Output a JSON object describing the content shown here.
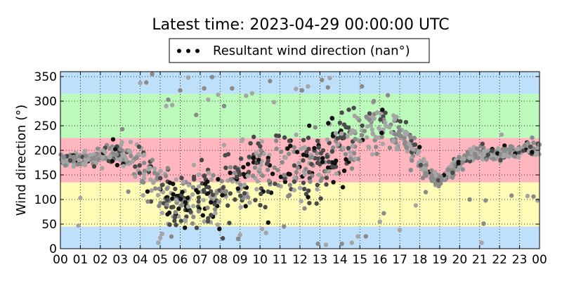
{
  "chart_data": {
    "type": "scatter",
    "title": "Latest time: 2023-04-29 00:00:00 UTC",
    "xlabel": "",
    "ylabel": "Wind direction (°)",
    "xlim": [
      0,
      24
    ],
    "ylim": [
      0,
      360
    ],
    "x_tick_labels": [
      "00",
      "01",
      "02",
      "03",
      "04",
      "05",
      "06",
      "07",
      "08",
      "09",
      "10",
      "11",
      "12",
      "13",
      "14",
      "15",
      "16",
      "17",
      "18",
      "19",
      "20",
      "21",
      "22",
      "23",
      "00"
    ],
    "y_ticks": [
      0,
      50,
      100,
      150,
      200,
      250,
      300,
      350
    ],
    "grid": true,
    "legend": {
      "placement": "top-center",
      "entries": [
        "Resultant wind direction (nan°)"
      ]
    },
    "bands": [
      {
        "from": 0,
        "to": 45,
        "color": "#bfe0fb"
      },
      {
        "from": 45,
        "to": 135,
        "color": "#fffcb8"
      },
      {
        "from": 135,
        "to": 225,
        "color": "#ffb6be"
      },
      {
        "from": 225,
        "to": 315,
        "color": "#bdfbbd"
      },
      {
        "from": 315,
        "to": 360,
        "color": "#bfe0fb"
      }
    ],
    "series": [
      {
        "name": "Resultant wind direction (nan°)",
        "colors": [
          "#8a8a8a",
          "#4a4a4a",
          "#111111",
          "#a5a5a5"
        ],
        "profile": [
          {
            "x": 0.0,
            "y": 180,
            "s": 12
          },
          {
            "x": 0.5,
            "y": 180,
            "s": 12
          },
          {
            "x": 1.0,
            "y": 182,
            "s": 14
          },
          {
            "x": 1.5,
            "y": 183,
            "s": 14
          },
          {
            "x": 2.0,
            "y": 188,
            "s": 15
          },
          {
            "x": 2.5,
            "y": 192,
            "s": 18
          },
          {
            "x": 3.0,
            "y": 190,
            "s": 22
          },
          {
            "x": 3.5,
            "y": 185,
            "s": 30
          },
          {
            "x": 4.0,
            "y": 170,
            "s": 40
          },
          {
            "x": 4.5,
            "y": 150,
            "s": 55
          },
          {
            "x": 5.0,
            "y": 120,
            "s": 60
          },
          {
            "x": 5.5,
            "y": 105,
            "s": 55
          },
          {
            "x": 6.0,
            "y": 100,
            "s": 50
          },
          {
            "x": 6.5,
            "y": 100,
            "s": 50
          },
          {
            "x": 7.0,
            "y": 102,
            "s": 55
          },
          {
            "x": 7.5,
            "y": 108,
            "s": 60
          },
          {
            "x": 8.0,
            "y": 115,
            "s": 65
          },
          {
            "x": 8.5,
            "y": 125,
            "s": 70
          },
          {
            "x": 9.0,
            "y": 135,
            "s": 70
          },
          {
            "x": 9.5,
            "y": 145,
            "s": 70
          },
          {
            "x": 10.0,
            "y": 150,
            "s": 70
          },
          {
            "x": 10.5,
            "y": 155,
            "s": 70
          },
          {
            "x": 11.0,
            "y": 160,
            "s": 70
          },
          {
            "x": 11.5,
            "y": 165,
            "s": 70
          },
          {
            "x": 12.0,
            "y": 170,
            "s": 70
          },
          {
            "x": 12.5,
            "y": 175,
            "s": 70
          },
          {
            "x": 13.0,
            "y": 180,
            "s": 70
          },
          {
            "x": 13.5,
            "y": 190,
            "s": 65
          },
          {
            "x": 14.0,
            "y": 205,
            "s": 60
          },
          {
            "x": 14.5,
            "y": 220,
            "s": 55
          },
          {
            "x": 15.0,
            "y": 235,
            "s": 50
          },
          {
            "x": 15.5,
            "y": 245,
            "s": 45
          },
          {
            "x": 16.0,
            "y": 250,
            "s": 45
          },
          {
            "x": 16.5,
            "y": 245,
            "s": 40
          },
          {
            "x": 17.0,
            "y": 235,
            "s": 35
          },
          {
            "x": 17.5,
            "y": 215,
            "s": 30
          },
          {
            "x": 18.0,
            "y": 185,
            "s": 25
          },
          {
            "x": 18.5,
            "y": 150,
            "s": 15
          },
          {
            "x": 19.0,
            "y": 140,
            "s": 12
          },
          {
            "x": 19.5,
            "y": 155,
            "s": 12
          },
          {
            "x": 20.0,
            "y": 175,
            "s": 15
          },
          {
            "x": 20.5,
            "y": 190,
            "s": 15
          },
          {
            "x": 21.0,
            "y": 198,
            "s": 14
          },
          {
            "x": 21.5,
            "y": 195,
            "s": 14
          },
          {
            "x": 22.0,
            "y": 192,
            "s": 12
          },
          {
            "x": 22.5,
            "y": 195,
            "s": 12
          },
          {
            "x": 23.0,
            "y": 200,
            "s": 14
          },
          {
            "x": 23.5,
            "y": 205,
            "s": 15
          },
          {
            "x": 24.0,
            "y": 200,
            "s": 15
          }
        ],
        "outliers": [
          {
            "x": 0.9,
            "y": 47
          },
          {
            "x": 1.0,
            "y": 103
          },
          {
            "x": 3.1,
            "y": 243
          },
          {
            "x": 3.4,
            "y": 116
          },
          {
            "x": 4.0,
            "y": 337
          },
          {
            "x": 4.3,
            "y": 338
          },
          {
            "x": 4.6,
            "y": 355
          },
          {
            "x": 4.9,
            "y": 12
          },
          {
            "x": 5.0,
            "y": 22
          },
          {
            "x": 5.1,
            "y": 30
          },
          {
            "x": 5.3,
            "y": 290
          },
          {
            "x": 5.4,
            "y": 303
          },
          {
            "x": 5.6,
            "y": 292
          },
          {
            "x": 6.0,
            "y": 322
          },
          {
            "x": 6.4,
            "y": 348
          },
          {
            "x": 6.8,
            "y": 272
          },
          {
            "x": 7.2,
            "y": 326
          },
          {
            "x": 7.4,
            "y": 303
          },
          {
            "x": 7.6,
            "y": 349
          },
          {
            "x": 7.9,
            "y": 313
          },
          {
            "x": 8.2,
            "y": 290
          },
          {
            "x": 8.6,
            "y": 326
          },
          {
            "x": 8.9,
            "y": 20
          },
          {
            "x": 9.0,
            "y": 28
          },
          {
            "x": 9.3,
            "y": 311
          },
          {
            "x": 9.6,
            "y": 316
          },
          {
            "x": 10.1,
            "y": 40
          },
          {
            "x": 10.3,
            "y": 32
          },
          {
            "x": 10.5,
            "y": 341
          },
          {
            "x": 10.7,
            "y": 298
          },
          {
            "x": 11.2,
            "y": 45
          },
          {
            "x": 11.8,
            "y": 325
          },
          {
            "x": 12.1,
            "y": 322
          },
          {
            "x": 12.4,
            "y": 330
          },
          {
            "x": 12.9,
            "y": 10
          },
          {
            "x": 13.1,
            "y": 343
          },
          {
            "x": 13.3,
            "y": 8
          },
          {
            "x": 13.4,
            "y": 328
          },
          {
            "x": 13.5,
            "y": 347
          },
          {
            "x": 14.1,
            "y": 10
          },
          {
            "x": 14.6,
            "y": 12
          },
          {
            "x": 14.9,
            "y": 25
          },
          {
            "x": 15.1,
            "y": 330
          },
          {
            "x": 15.3,
            "y": 25
          },
          {
            "x": 15.7,
            "y": 300
          },
          {
            "x": 16.0,
            "y": 55
          },
          {
            "x": 16.2,
            "y": 72
          },
          {
            "x": 16.4,
            "y": 312
          },
          {
            "x": 17.0,
            "y": 38
          },
          {
            "x": 17.8,
            "y": 88
          },
          {
            "x": 18.3,
            "y": 115
          },
          {
            "x": 20.5,
            "y": 100
          },
          {
            "x": 21.1,
            "y": 12
          },
          {
            "x": 21.2,
            "y": 51
          },
          {
            "x": 21.3,
            "y": 98
          },
          {
            "x": 22.1,
            "y": 232
          },
          {
            "x": 22.6,
            "y": 108
          },
          {
            "x": 23.4,
            "y": 107
          },
          {
            "x": 23.7,
            "y": 106
          },
          {
            "x": 23.9,
            "y": 98
          }
        ]
      }
    ]
  }
}
